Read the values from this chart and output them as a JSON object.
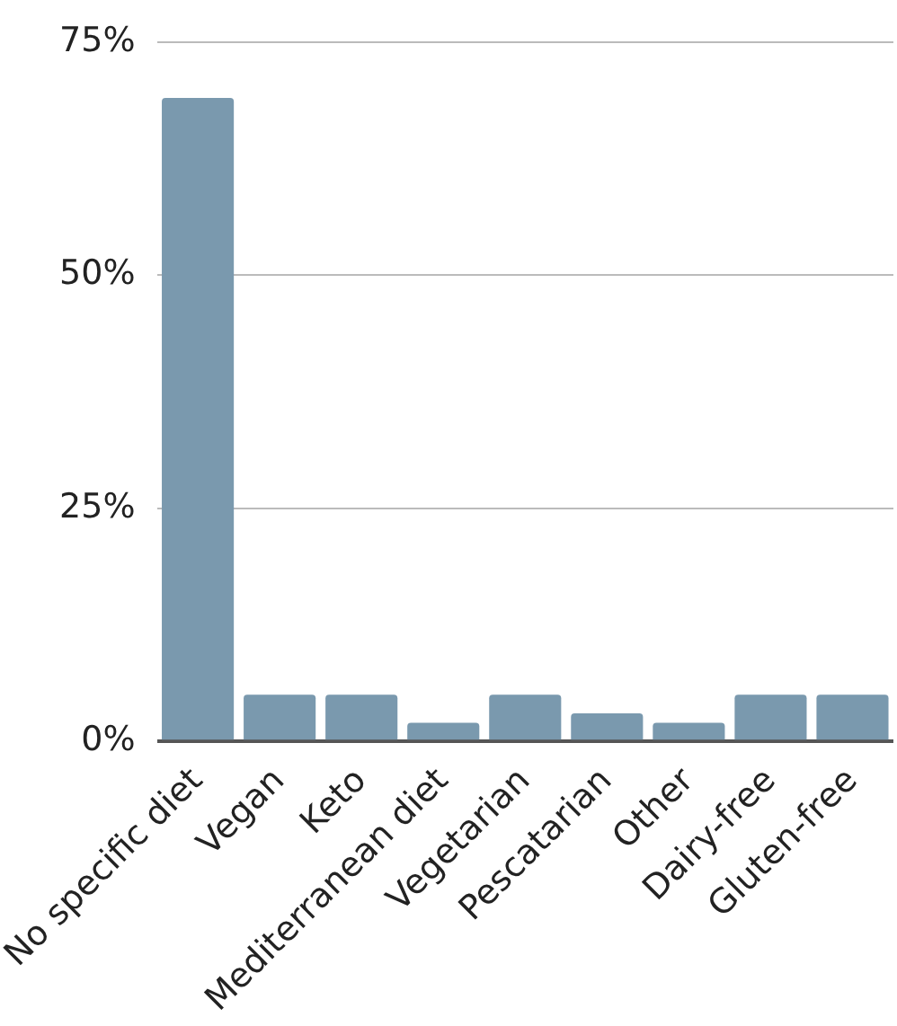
{
  "chart_data": {
    "type": "bar",
    "categories": [
      "No specific diet",
      "Vegan",
      "Keto",
      "Mediterranean diet",
      "Vegetarian",
      "Pescatarian",
      "Other",
      "Dairy-free",
      "Gluten-free"
    ],
    "values": [
      69,
      5,
      5,
      2,
      5,
      3,
      2,
      5,
      5
    ],
    "color": "#7a99ae",
    "ylim": [
      0,
      75
    ],
    "yticks": [
      {
        "value": 0,
        "label": "0%"
      },
      {
        "value": 25,
        "label": "25%"
      },
      {
        "value": 50,
        "label": "50%"
      },
      {
        "value": 75,
        "label": "75%"
      }
    ],
    "grid": "y"
  }
}
